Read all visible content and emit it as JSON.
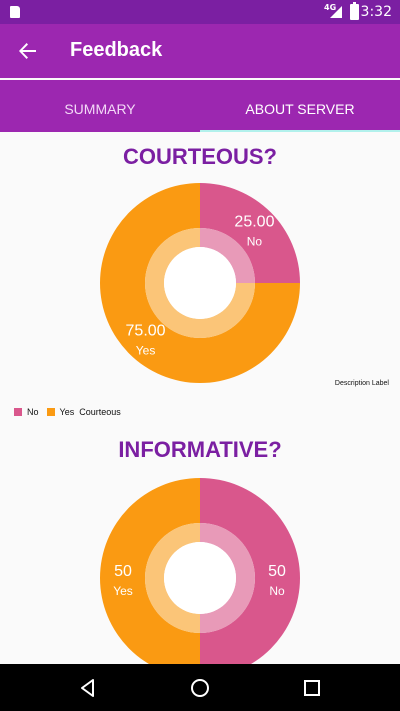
{
  "status_bar": {
    "time": "3:32",
    "network": "4G",
    "sd_icon": "sd-card-icon",
    "signal_icon": "signal-icon",
    "battery_icon": "battery-icon"
  },
  "app_bar": {
    "title": "Feedback",
    "back_icon": "arrow-back-icon"
  },
  "tabs": [
    {
      "label": "SUMMARY",
      "active": false
    },
    {
      "label": "ABOUT SERVER",
      "active": true
    }
  ],
  "colors": {
    "primary_dark": "#7b1fa2",
    "primary": "#9c27b0",
    "pink": "#d9578c",
    "orange": "#fa9a12",
    "inner_ring_pink": "#e89ab8",
    "inner_ring_orange": "#fbc578",
    "indicator": "#b2f1ec"
  },
  "chart_data": [
    {
      "type": "pie",
      "title": "COURTEOUS?",
      "description_label": "Description Label",
      "legend_title": "Courteous",
      "legend_position": "bottom-left",
      "slices": [
        {
          "label": "No",
          "value": 25,
          "display": "25.00",
          "color": "#d9578c",
          "inner_color": "#e89ab8"
        },
        {
          "label": "Yes",
          "value": 75,
          "display": "75.00",
          "color": "#fa9a12",
          "inner_color": "#fbc578"
        }
      ]
    },
    {
      "type": "pie",
      "title": "INFORMATIVE?",
      "slices": [
        {
          "label": "No",
          "value": 50,
          "display": "50",
          "color": "#d9578c",
          "inner_color": "#e89ab8"
        },
        {
          "label": "Yes",
          "value": 50,
          "display": "50",
          "color": "#fa9a12",
          "inner_color": "#fbc578"
        }
      ]
    }
  ],
  "nav_bar": {
    "back_icon": "nav-back-icon",
    "home_icon": "nav-home-icon",
    "recents_icon": "nav-recents-icon"
  }
}
